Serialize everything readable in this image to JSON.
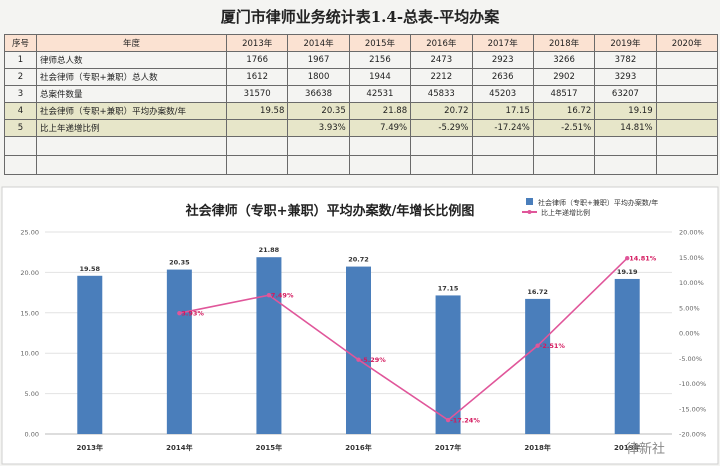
{
  "document": {
    "title": "厦门市律师业务统计表1.4-总表-平均办案"
  },
  "table": {
    "headers": [
      "序号",
      "年度",
      "2013年",
      "2014年",
      "2015年",
      "2016年",
      "2017年",
      "2018年",
      "2019年",
      "2020年"
    ],
    "rows": [
      {
        "no": "1",
        "label": "律师总人数",
        "values": [
          "1766",
          "1967",
          "2156",
          "2473",
          "2923",
          "3266",
          "3782",
          ""
        ]
      },
      {
        "no": "2",
        "label": "社会律师（专职+兼职）总人数",
        "values": [
          "1612",
          "1800",
          "1944",
          "2212",
          "2636",
          "2902",
          "3293",
          ""
        ]
      },
      {
        "no": "3",
        "label": "总案件数量",
        "values": [
          "31570",
          "36638",
          "42531",
          "45833",
          "45203",
          "48517",
          "63207",
          ""
        ]
      },
      {
        "no": "4",
        "label": "社会律师（专职+兼职）平均办案数/年",
        "values": [
          "19.58",
          "20.35",
          "21.88",
          "20.72",
          "17.15",
          "16.72",
          "19.19",
          ""
        ]
      },
      {
        "no": "5",
        "label": "比上年递增比例",
        "values": [
          "",
          "3.93%",
          "7.49%",
          "-5.29%",
          "-17.24%",
          "-2.51%",
          "14.81%",
          ""
        ]
      }
    ]
  },
  "colors": {
    "bar": "#4a7ebb",
    "line": "#e0569a",
    "header_bg": "#fbe2d2",
    "highlight_row_bg": "#e7e6c9"
  },
  "chart_data": {
    "type": "bar",
    "title": "社会律师（专职+兼职）平均办案数/年增长比例图",
    "categories": [
      "2013年",
      "2014年",
      "2015年",
      "2016年",
      "2017年",
      "2018年",
      "2019年"
    ],
    "series": [
      {
        "name": "社会律师（专职+兼职）平均办案数/年",
        "type": "bar",
        "axis": "left",
        "values": [
          19.58,
          20.35,
          21.88,
          20.72,
          17.15,
          16.72,
          19.19
        ],
        "labels": [
          "19.58",
          "20.35",
          "21.88",
          "20.72",
          "17.15",
          "16.72",
          "19.19"
        ]
      },
      {
        "name": "比上年递增比例",
        "type": "line",
        "axis": "right",
        "values": [
          null,
          3.93,
          7.49,
          -5.29,
          -17.24,
          -2.51,
          14.81
        ],
        "labels": [
          "",
          "3.93%",
          "7.49%",
          "-5.29%",
          "-17.24%",
          "-2.51%",
          "14.81%"
        ]
      }
    ],
    "ylim": [
      0,
      25
    ],
    "y_ticks": [
      "0.00",
      "5.00",
      "10.00",
      "15.00",
      "20.00",
      "25.00"
    ],
    "y2lim": [
      -20,
      20
    ],
    "y2_ticks": [
      "-20.00%",
      "-15.00%",
      "-10.00%",
      "-5.00%",
      "0.00%",
      "5.00%",
      "10.00%",
      "15.00%",
      "20.00%"
    ],
    "legend_position": "top-right",
    "grid": true
  },
  "watermark": {
    "text": "律新社"
  }
}
